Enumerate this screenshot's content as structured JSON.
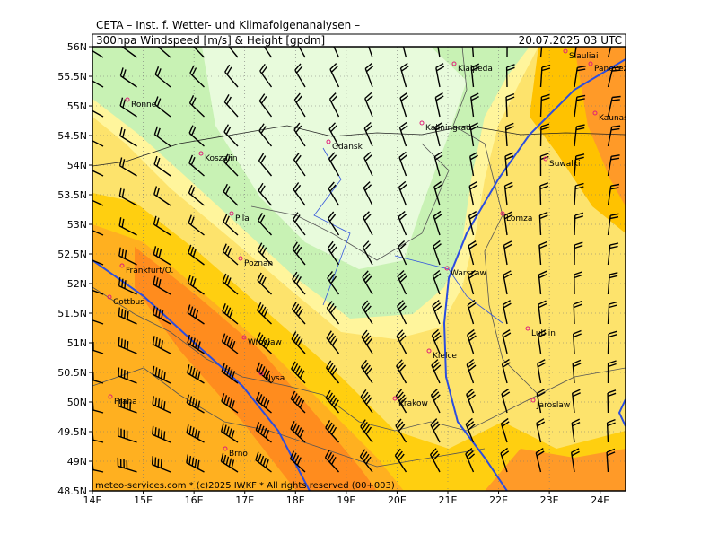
{
  "header": {
    "institute": "CETA – Inst. f. Wetter- und Klimafolgenanalysen –",
    "product": "300hpa Windspeed [m/s] & Height [gpdm]",
    "valid": "20.07.2025 03 UTC"
  },
  "footer": "meteo-services.com * (c)2025 IWKF * All rights reserved (00+003)",
  "axes": {
    "lat_labels": [
      "56N",
      "55.5N",
      "55N",
      "54.5N",
      "54N",
      "53.5N",
      "53N",
      "52.5N",
      "52N",
      "51.5N",
      "51N",
      "50.5N",
      "50N",
      "49.5N",
      "49N",
      "48.5N"
    ],
    "lon_labels": [
      "14E",
      "15E",
      "16E",
      "17E",
      "18E",
      "19E",
      "20E",
      "21E",
      "22E",
      "23E",
      "24E"
    ]
  },
  "cities": [
    "Klaipeda",
    "Siauliai",
    "Panevezys",
    "Ronne",
    "Kaunas",
    "Kaliningrad",
    "Gdansk",
    "Koszalin",
    "Suwalki",
    "Lomza",
    "Pila",
    "Poznan",
    "Frankfurt/O.",
    "Warszaw",
    "Cottbus",
    "Lublin",
    "Wroclaw",
    "Kielce",
    "Nysa",
    "Praha",
    "Krakow",
    "Jaroslaw",
    "Brno"
  ]
}
